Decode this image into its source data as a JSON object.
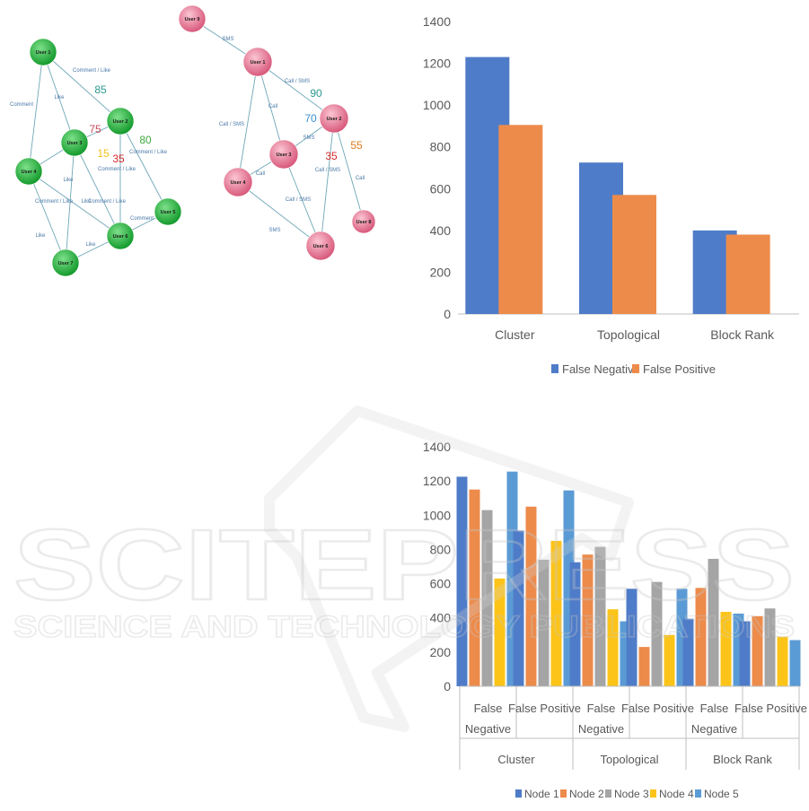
{
  "watermark": {
    "line1": "SCITEPRESS",
    "line2": "SCIENCE AND TECHNOLOGY PUBLICATIONS"
  },
  "graph_left": {
    "color": "#1fbf3a",
    "nodes": [
      {
        "id": "u1",
        "label": "User 1"
      },
      {
        "id": "u2",
        "label": "User 2"
      },
      {
        "id": "u3",
        "label": "User 3"
      },
      {
        "id": "u4",
        "label": "User 4"
      },
      {
        "id": "u5",
        "label": "User 5"
      },
      {
        "id": "u6",
        "label": "User 6"
      },
      {
        "id": "u7",
        "label": "User 7"
      }
    ],
    "edge_labels": [
      "Comment / Like",
      "Like",
      "Comment",
      "Comment / Like",
      "Like",
      "Comment / Like",
      "Like",
      "Comment / Like",
      "Like",
      "Comment / Like",
      "Like",
      "Comment"
    ],
    "scores": [
      {
        "text": "85",
        "color": "#2a9a8f"
      },
      {
        "text": "75",
        "color": "#c84b5c"
      },
      {
        "text": "15",
        "color": "#f2c21b"
      },
      {
        "text": "35",
        "color": "#d62a2a"
      },
      {
        "text": "80",
        "color": "#3daa3d"
      }
    ]
  },
  "graph_right": {
    "color": "#e0708a",
    "nodes": [
      {
        "id": "u9",
        "label": "User 9"
      },
      {
        "id": "u1",
        "label": "User 1"
      },
      {
        "id": "u2",
        "label": "User 2"
      },
      {
        "id": "u3",
        "label": "User 3"
      },
      {
        "id": "u4",
        "label": "User 4"
      },
      {
        "id": "u6",
        "label": "User 6"
      },
      {
        "id": "u8",
        "label": "User 8"
      }
    ],
    "edge_labels": [
      "SMS",
      "Call / SMS",
      "Call / SMS",
      "Call",
      "SMS",
      "Call",
      "Call / SMS",
      "Call / SMS",
      "Call",
      "SMS"
    ],
    "scores": [
      {
        "text": "90",
        "color": "#2a9a8f"
      },
      {
        "text": "70",
        "color": "#3a8fd0"
      },
      {
        "text": "35",
        "color": "#d62a2a"
      },
      {
        "text": "55",
        "color": "#e07a1b"
      }
    ]
  },
  "chart_data": [
    {
      "type": "bar",
      "categories": [
        "Cluster",
        "Topological",
        "Block Rank"
      ],
      "series": [
        {
          "name": "False Negative",
          "color": "#4f7cc8",
          "values": [
            1230,
            725,
            400
          ]
        },
        {
          "name": "False Positive",
          "color": "#ed8b4b",
          "values": [
            905,
            570,
            380
          ]
        }
      ],
      "ylim": [
        0,
        1400
      ],
      "yticks": [
        "0",
        "200",
        "400",
        "600",
        "800",
        "1000",
        "1200",
        "1400"
      ],
      "legend": "bottom",
      "grid": false
    },
    {
      "type": "bar",
      "groups": [
        "Cluster",
        "Topological",
        "Block Rank"
      ],
      "subcategories": [
        "False Negative",
        "False Positive"
      ],
      "subcategory_lines": [
        [
          "False",
          "Negative"
        ],
        [
          "False Positive"
        ]
      ],
      "series": [
        {
          "name": "Node 1",
          "color": "#4f7cc8",
          "values": [
            1225,
            910,
            725,
            570,
            395,
            380
          ]
        },
        {
          "name": "Node 2",
          "color": "#ed8b4b",
          "values": [
            1150,
            1050,
            770,
            230,
            575,
            410
          ]
        },
        {
          "name": "Node 3",
          "color": "#a5a5a5",
          "values": [
            1030,
            740,
            815,
            610,
            745,
            455
          ]
        },
        {
          "name": "Node 4",
          "color": "#fcc419",
          "values": [
            630,
            850,
            450,
            300,
            435,
            290
          ]
        },
        {
          "name": "Node 5",
          "color": "#5b9bd5",
          "values": [
            1255,
            1145,
            380,
            570,
            425,
            270
          ]
        }
      ],
      "ylim": [
        0,
        1400
      ],
      "yticks": [
        "0",
        "200",
        "400",
        "600",
        "800",
        "1000",
        "1200",
        "1400"
      ],
      "legend": "bottom",
      "grid": false
    }
  ]
}
